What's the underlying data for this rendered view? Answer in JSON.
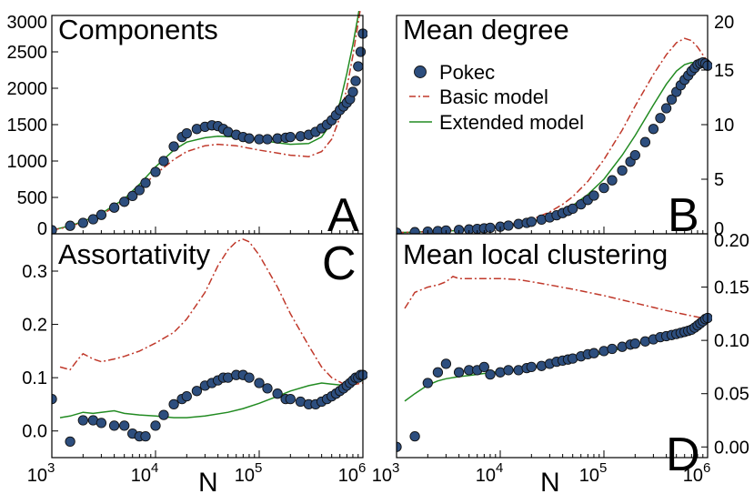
{
  "figure": {
    "x_axis_label": "N",
    "x_tick_labels": [
      {
        "exp": 3,
        "text": "10",
        "sup": "3"
      },
      {
        "exp": 4,
        "text": "10",
        "sup": "4"
      },
      {
        "exp": 5,
        "text": "10",
        "sup": "5"
      },
      {
        "exp": 6,
        "text": "10",
        "sup": "6"
      }
    ]
  },
  "legend": {
    "items": [
      {
        "label": "Pokec",
        "style": "marker",
        "color": "#2d4e7e"
      },
      {
        "label": "Basic model",
        "style": "dashdot",
        "color": "#c0392b"
      },
      {
        "label": "Extended model",
        "style": "solid",
        "color": "#228b22"
      }
    ]
  },
  "colors": {
    "pokec_fill": "#2d4e7e",
    "pokec_edge": "#111111",
    "basic": "#c0392b",
    "extended": "#228b22"
  },
  "chart_data": [
    {
      "id": "A",
      "type": "line",
      "title": "Components",
      "letter": "A",
      "x_scale": "log",
      "xlim": [
        1000,
        1000000
      ],
      "ylim": [
        0,
        3000
      ],
      "y_side": "left",
      "y_ticks": [
        0,
        500,
        1000,
        1500,
        2000,
        2500,
        3000
      ],
      "y_tick_labels": [
        "0",
        "500",
        "1000",
        "1500",
        "2000",
        "2500",
        "3000"
      ],
      "series": [
        {
          "name": "Pokec",
          "style": "marker",
          "x": [
            1000,
            1500,
            2000,
            2500,
            3000,
            4000,
            5000,
            6000,
            7000,
            8000,
            10000,
            12000,
            15000,
            18000,
            20000,
            25000,
            30000,
            35000,
            40000,
            45000,
            50000,
            60000,
            70000,
            80000,
            100000,
            120000,
            150000,
            180000,
            200000,
            250000,
            300000,
            350000,
            400000,
            450000,
            500000,
            550000,
            600000,
            650000,
            700000,
            750000,
            800000,
            850000,
            900000,
            950000,
            1000000
          ],
          "y": [
            50,
            110,
            150,
            200,
            260,
            360,
            440,
            520,
            600,
            700,
            850,
            1000,
            1200,
            1330,
            1380,
            1440,
            1470,
            1490,
            1480,
            1440,
            1400,
            1360,
            1330,
            1310,
            1300,
            1300,
            1310,
            1320,
            1330,
            1340,
            1360,
            1400,
            1450,
            1500,
            1560,
            1630,
            1700,
            1750,
            1800,
            1850,
            1950,
            2100,
            2300,
            2500,
            2750
          ]
        },
        {
          "name": "Basic model",
          "style": "dashdot",
          "x": [
            1000,
            1500,
            2000,
            3000,
            5000,
            7000,
            10000,
            15000,
            20000,
            30000,
            40000,
            60000,
            100000,
            150000,
            200000,
            300000,
            400000,
            500000,
            600000,
            700000,
            800000,
            900000,
            1000000
          ],
          "y": [
            50,
            100,
            160,
            260,
            450,
            620,
            820,
            1020,
            1130,
            1210,
            1230,
            1210,
            1150,
            1110,
            1080,
            1060,
            1130,
            1300,
            1600,
            2000,
            2450,
            2900,
            3300
          ]
        },
        {
          "name": "Extended model",
          "style": "solid",
          "x": [
            1000,
            1500,
            2000,
            3000,
            5000,
            7000,
            10000,
            15000,
            20000,
            30000,
            40000,
            60000,
            100000,
            150000,
            200000,
            300000,
            400000,
            500000,
            600000,
            700000,
            800000,
            900000,
            1000000
          ],
          "y": [
            50,
            110,
            170,
            280,
            480,
            680,
            920,
            1150,
            1260,
            1320,
            1340,
            1330,
            1290,
            1250,
            1230,
            1240,
            1330,
            1530,
            1800,
            2200,
            2600,
            3000,
            3400
          ]
        }
      ]
    },
    {
      "id": "B",
      "type": "line",
      "title": "Mean degree",
      "letter": "B",
      "x_scale": "log",
      "xlim": [
        1000,
        1000000
      ],
      "ylim": [
        0,
        20
      ],
      "y_side": "right",
      "y_ticks": [
        0,
        5,
        10,
        15,
        20
      ],
      "y_tick_labels": [
        "0",
        "5",
        "10",
        "15",
        "20"
      ],
      "series": [
        {
          "name": "Pokec",
          "style": "marker",
          "x": [
            1000,
            1500,
            2000,
            2500,
            3000,
            4000,
            5000,
            6000,
            7000,
            8000,
            10000,
            12000,
            15000,
            18000,
            20000,
            25000,
            30000,
            35000,
            40000,
            45000,
            50000,
            60000,
            70000,
            80000,
            100000,
            120000,
            150000,
            180000,
            200000,
            250000,
            300000,
            350000,
            400000,
            450000,
            500000,
            550000,
            600000,
            650000,
            700000,
            750000,
            800000,
            850000,
            900000,
            950000,
            1000000
          ],
          "y": [
            0.1,
            0.15,
            0.2,
            0.25,
            0.3,
            0.35,
            0.4,
            0.45,
            0.5,
            0.55,
            0.65,
            0.75,
            0.9,
            1.0,
            1.1,
            1.3,
            1.5,
            1.7,
            1.9,
            2.1,
            2.3,
            2.7,
            3.1,
            3.5,
            4.2,
            4.9,
            5.8,
            6.6,
            7.2,
            8.4,
            9.6,
            10.6,
            11.5,
            12.3,
            13.0,
            13.6,
            14.1,
            14.5,
            14.9,
            15.2,
            15.5,
            15.6,
            15.7,
            15.6,
            15.4
          ]
        },
        {
          "name": "Basic model",
          "style": "dashdot",
          "x": [
            1000,
            2000,
            3000,
            5000,
            7000,
            10000,
            15000,
            20000,
            30000,
            40000,
            50000,
            70000,
            100000,
            150000,
            200000,
            300000,
            400000,
            500000,
            600000,
            700000,
            800000,
            900000,
            1000000
          ],
          "y": [
            0.1,
            0.2,
            0.3,
            0.4,
            0.5,
            0.7,
            1.0,
            1.3,
            2.0,
            2.7,
            3.4,
            4.8,
            6.8,
            9.5,
            11.7,
            14.6,
            16.4,
            17.5,
            17.9,
            17.7,
            17.1,
            16.4,
            15.8
          ]
        },
        {
          "name": "Extended model",
          "style": "solid",
          "x": [
            1000,
            2000,
            3000,
            5000,
            7000,
            10000,
            15000,
            20000,
            30000,
            40000,
            50000,
            70000,
            100000,
            150000,
            200000,
            300000,
            400000,
            500000,
            600000,
            700000,
            800000,
            900000,
            1000000
          ],
          "y": [
            0.1,
            0.2,
            0.25,
            0.35,
            0.45,
            0.6,
            0.85,
            1.1,
            1.6,
            2.1,
            2.6,
            3.6,
            5.0,
            7.2,
            9.0,
            11.8,
            13.7,
            14.9,
            15.5,
            15.7,
            15.6,
            15.4,
            15.2
          ]
        }
      ]
    },
    {
      "id": "C",
      "type": "line",
      "title": "Assortativity",
      "letter": "C",
      "x_scale": "log",
      "xlim": [
        1000,
        1000000
      ],
      "ylim": [
        -0.05,
        0.37
      ],
      "y_side": "left",
      "y_ticks": [
        0.0,
        0.1,
        0.2,
        0.3
      ],
      "y_tick_labels": [
        "0.0",
        "0.1",
        "0.2",
        "0.3"
      ],
      "series": [
        {
          "name": "Pokec",
          "style": "marker",
          "x": [
            1000,
            1500,
            2000,
            2500,
            3000,
            4000,
            5000,
            6000,
            7000,
            8000,
            10000,
            12000,
            15000,
            18000,
            20000,
            25000,
            30000,
            35000,
            40000,
            45000,
            50000,
            60000,
            70000,
            80000,
            100000,
            120000,
            150000,
            180000,
            200000,
            250000,
            300000,
            350000,
            400000,
            450000,
            500000,
            550000,
            600000,
            650000,
            700000,
            750000,
            800000,
            850000,
            900000,
            950000,
            1000000
          ],
          "y": [
            0.06,
            -0.02,
            0.02,
            0.02,
            0.015,
            0.01,
            0.01,
            -0.005,
            -0.01,
            -0.01,
            0.01,
            0.03,
            0.05,
            0.06,
            0.065,
            0.075,
            0.085,
            0.09,
            0.095,
            0.1,
            0.1,
            0.105,
            0.105,
            0.1,
            0.09,
            0.08,
            0.07,
            0.06,
            0.06,
            0.055,
            0.05,
            0.05,
            0.055,
            0.06,
            0.065,
            0.07,
            0.075,
            0.08,
            0.085,
            0.09,
            0.095,
            0.1,
            0.1,
            0.105,
            0.105
          ]
        },
        {
          "name": "Basic model",
          "style": "dashdot",
          "x": [
            1200,
            1500,
            1800,
            2000,
            2500,
            3000,
            4000,
            5000,
            7000,
            10000,
            15000,
            20000,
            30000,
            40000,
            50000,
            60000,
            70000,
            80000,
            100000,
            150000,
            200000,
            300000,
            400000,
            500000,
            700000,
            1000000
          ],
          "y": [
            0.12,
            0.115,
            0.135,
            0.145,
            0.135,
            0.13,
            0.135,
            0.14,
            0.15,
            0.165,
            0.185,
            0.21,
            0.26,
            0.31,
            0.34,
            0.355,
            0.36,
            0.355,
            0.33,
            0.27,
            0.22,
            0.16,
            0.12,
            0.1,
            0.085,
            0.09
          ]
        },
        {
          "name": "Extended model",
          "style": "solid",
          "x": [
            1200,
            1500,
            2000,
            2500,
            3000,
            4000,
            5000,
            7000,
            10000,
            15000,
            20000,
            30000,
            50000,
            70000,
            100000,
            150000,
            200000,
            300000,
            400000,
            500000,
            700000,
            1000000
          ],
          "y": [
            0.025,
            0.028,
            0.035,
            0.033,
            0.035,
            0.038,
            0.033,
            0.03,
            0.028,
            0.025,
            0.025,
            0.028,
            0.035,
            0.042,
            0.052,
            0.065,
            0.075,
            0.085,
            0.09,
            0.088,
            0.085,
            0.095
          ]
        }
      ]
    },
    {
      "id": "D",
      "type": "line",
      "title": "Mean local clustering",
      "letter": "D",
      "x_scale": "log",
      "xlim": [
        1000,
        1000000
      ],
      "ylim": [
        -0.01,
        0.2
      ],
      "y_side": "right",
      "y_ticks": [
        0.0,
        0.05,
        0.1,
        0.15,
        0.2
      ],
      "y_tick_labels": [
        "0.00",
        "0.05",
        "0.10",
        "0.15",
        "0.20"
      ],
      "series": [
        {
          "name": "Pokec",
          "style": "marker",
          "x": [
            1000,
            1500,
            2000,
            2500,
            3000,
            4000,
            5000,
            6000,
            7000,
            8000,
            10000,
            12000,
            15000,
            18000,
            20000,
            25000,
            30000,
            35000,
            40000,
            45000,
            50000,
            60000,
            70000,
            80000,
            100000,
            120000,
            150000,
            180000,
            200000,
            250000,
            300000,
            350000,
            400000,
            450000,
            500000,
            550000,
            600000,
            650000,
            700000,
            750000,
            800000,
            850000,
            900000,
            950000,
            1000000
          ],
          "y": [
            0.0,
            0.01,
            0.06,
            0.07,
            0.078,
            0.07,
            0.072,
            0.072,
            0.075,
            0.068,
            0.07,
            0.072,
            0.072,
            0.074,
            0.075,
            0.076,
            0.078,
            0.08,
            0.081,
            0.082,
            0.083,
            0.085,
            0.087,
            0.088,
            0.09,
            0.092,
            0.094,
            0.096,
            0.097,
            0.099,
            0.101,
            0.103,
            0.104,
            0.105,
            0.106,
            0.107,
            0.108,
            0.109,
            0.11,
            0.112,
            0.114,
            0.116,
            0.118,
            0.12,
            0.121
          ]
        },
        {
          "name": "Basic model",
          "style": "dashdot",
          "x": [
            1200,
            1500,
            2000,
            2500,
            3000,
            3500,
            4000,
            5000,
            7000,
            10000,
            15000,
            20000,
            30000,
            50000,
            100000,
            200000,
            400000,
            700000,
            1000000
          ],
          "y": [
            0.13,
            0.145,
            0.15,
            0.152,
            0.155,
            0.16,
            0.158,
            0.158,
            0.158,
            0.158,
            0.157,
            0.155,
            0.152,
            0.148,
            0.142,
            0.135,
            0.128,
            0.123,
            0.12
          ]
        },
        {
          "name": "Extended model",
          "style": "solid",
          "x": [
            1200,
            1500,
            2000,
            2500,
            3000,
            4000,
            5000,
            7000,
            10000,
            15000,
            20000,
            30000,
            50000,
            100000,
            200000,
            400000,
            700000,
            1000000
          ],
          "y": [
            0.043,
            0.05,
            0.058,
            0.062,
            0.064,
            0.066,
            0.067,
            0.069,
            0.071,
            0.073,
            0.075,
            0.078,
            0.082,
            0.088,
            0.096,
            0.105,
            0.114,
            0.12
          ]
        }
      ]
    }
  ]
}
